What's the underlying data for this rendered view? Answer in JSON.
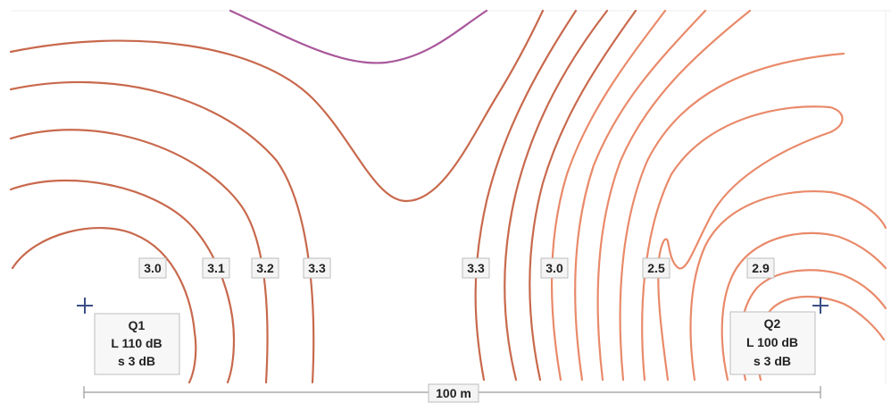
{
  "colors": {
    "contour": "#c8694d",
    "contour_light": "#e98a6a",
    "contour_top": "#a8579a",
    "source_marker": "#3a4f86"
  },
  "contour_labels": [
    "3.0",
    "3.1",
    "3.2",
    "3.3",
    "3.3",
    "3.0",
    "2.5",
    "2.9"
  ],
  "sources": [
    {
      "name": "Q1",
      "level": "L 110 dB",
      "spread": "s 3 dB",
      "icon": "plus-marker-icon"
    },
    {
      "name": "Q2",
      "level": "L 100 dB",
      "spread": "s 3 dB",
      "icon": "plus-marker-icon"
    }
  ],
  "scale_bar": {
    "label": "100 m"
  }
}
